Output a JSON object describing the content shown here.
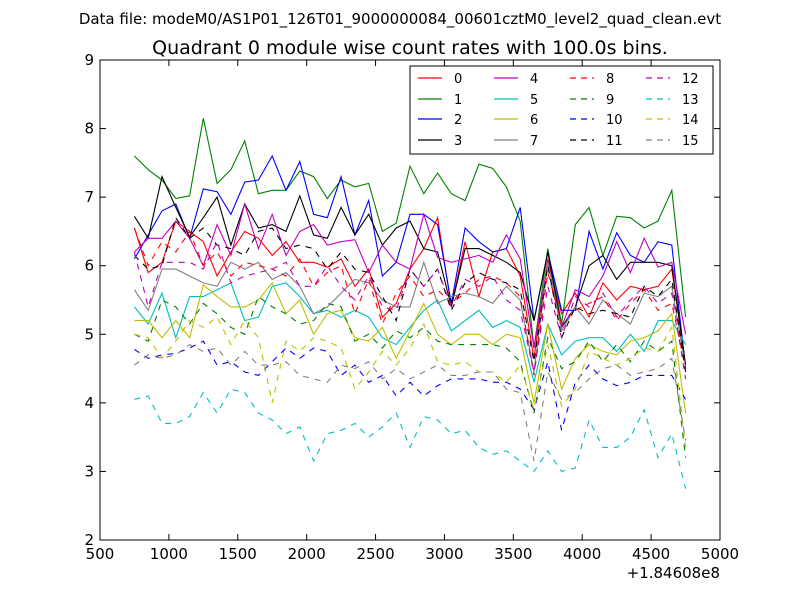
{
  "figure": {
    "suptitle": "Data file: modeM0/AS1P01_126T01_9000000084_00601cztM0_level2_quad_clean.evt",
    "title": "Quadrant 0 module wise count rates with 100.0s bins.",
    "x_offset_label": "+1.84608e8"
  },
  "chart_data": {
    "type": "line",
    "title": "Quadrant 0 module wise count rates with 100.0s bins.",
    "xlabel": "",
    "ylabel": "",
    "x_offset": "+1.84608e8",
    "xlim": [
      500,
      5000
    ],
    "ylim": [
      2,
      9
    ],
    "xticks": [
      500,
      1000,
      1500,
      2000,
      2500,
      3000,
      3500,
      4000,
      4500,
      5000
    ],
    "yticks": [
      2,
      3,
      4,
      5,
      6,
      7,
      8,
      9
    ],
    "grid": false,
    "legend_placement": "top-right",
    "x": [
      750,
      850,
      950,
      1050,
      1150,
      1250,
      1350,
      1450,
      1550,
      1650,
      1750,
      1850,
      1950,
      2050,
      2150,
      2250,
      2350,
      2450,
      2550,
      2650,
      2750,
      2850,
      2950,
      3050,
      3150,
      3250,
      3350,
      3450,
      3550,
      3650,
      3750,
      3850,
      3950,
      4050,
      4150,
      4250,
      4350,
      4450,
      4550,
      4650,
      4750
    ],
    "series": [
      {
        "name": "0",
        "color": "#ff0000",
        "dash": "solid",
        "values": [
          6.55,
          5.9,
          6.05,
          6.65,
          6.5,
          6.35,
          5.85,
          6.2,
          6.5,
          6.4,
          6.15,
          6.35,
          6.05,
          6.05,
          5.98,
          6.1,
          5.7,
          5.95,
          5.25,
          5.45,
          5.95,
          6.25,
          6.7,
          5.4,
          6.35,
          5.55,
          6.2,
          6.25,
          5.85,
          4.65,
          6.1,
          5.3,
          5.6,
          5.25,
          5.75,
          5.5,
          5.7,
          5.65,
          5.7,
          5.95,
          4.55
        ]
      },
      {
        "name": "1",
        "color": "#008000",
        "dash": "solid",
        "values": [
          7.6,
          7.4,
          7.25,
          6.98,
          7.02,
          8.15,
          7.2,
          7.4,
          7.82,
          7.05,
          7.1,
          7.1,
          7.38,
          7.3,
          6.98,
          7.25,
          7.15,
          7.2,
          6.5,
          6.62,
          7.45,
          7.05,
          7.35,
          7.05,
          6.95,
          7.48,
          7.42,
          7.15,
          6.65,
          4.8,
          6.25,
          5.15,
          6.6,
          6.85,
          6.15,
          6.72,
          6.7,
          6.55,
          6.65,
          7.1,
          5.25
        ]
      },
      {
        "name": "2",
        "color": "#0000ff",
        "dash": "solid",
        "values": [
          6.1,
          6.45,
          6.8,
          6.9,
          6.4,
          7.12,
          7.08,
          6.75,
          7.22,
          7.25,
          7.6,
          7.1,
          7.52,
          6.75,
          6.7,
          7.3,
          6.45,
          6.95,
          5.85,
          6.05,
          6.75,
          6.75,
          6.6,
          5.45,
          6.55,
          6.35,
          6.2,
          6.25,
          6.85,
          5.2,
          6.2,
          5.35,
          5.35,
          6.5,
          5.95,
          6.48,
          6.15,
          6.05,
          6.35,
          6.3,
          4.5
        ]
      },
      {
        "name": "3",
        "color": "#000000",
        "dash": "solid",
        "values": [
          6.72,
          6.4,
          7.3,
          6.85,
          6.42,
          6.7,
          7.0,
          6.3,
          6.9,
          6.55,
          6.6,
          6.5,
          7.02,
          6.45,
          6.4,
          6.85,
          6.45,
          6.75,
          6.3,
          6.55,
          6.65,
          6.25,
          6.2,
          5.4,
          6.25,
          6.25,
          6.15,
          6.05,
          5.9,
          5.2,
          6.2,
          5.1,
          5.4,
          6.0,
          6.15,
          5.8,
          6.05,
          6.05,
          6.05,
          6.0,
          4.55
        ]
      },
      {
        "name": "4",
        "color": "#bf00bf",
        "dash": "solid",
        "values": [
          6.2,
          6.4,
          6.4,
          6.65,
          6.4,
          6.0,
          6.6,
          6.15,
          6.9,
          6.25,
          6.75,
          6.15,
          6.5,
          6.6,
          6.3,
          6.35,
          6.38,
          5.9,
          6.3,
          6.05,
          5.95,
          6.75,
          6.12,
          6.05,
          6.1,
          6.15,
          6.05,
          6.45,
          6.1,
          4.8,
          6.05,
          5.1,
          5.65,
          5.55,
          5.85,
          6.35,
          5.9,
          6.4,
          5.98,
          6.05,
          5.0
        ]
      },
      {
        "name": "5",
        "color": "#00bfbf",
        "dash": "solid",
        "values": [
          5.4,
          5.15,
          5.6,
          4.95,
          5.55,
          5.55,
          5.65,
          5.75,
          5.2,
          5.25,
          5.7,
          5.75,
          5.55,
          5.3,
          5.35,
          5.25,
          5.35,
          5.25,
          4.95,
          4.85,
          5.1,
          5.35,
          5.5,
          5.05,
          5.2,
          5.35,
          5.1,
          5.2,
          5.1,
          4.3,
          5.15,
          4.7,
          4.9,
          4.95,
          4.95,
          4.75,
          5.0,
          4.75,
          5.2,
          5.2,
          4.85
        ]
      },
      {
        "name": "6",
        "color": "#bfbf00",
        "dash": "solid",
        "values": [
          5.2,
          5.2,
          4.95,
          5.2,
          4.95,
          5.72,
          5.55,
          5.4,
          5.4,
          5.5,
          5.75,
          5.3,
          5.5,
          5.0,
          5.3,
          5.35,
          4.95,
          4.9,
          5.1,
          4.65,
          5.05,
          5.45,
          5.0,
          4.85,
          5.0,
          5.0,
          4.85,
          5.0,
          4.95,
          4.0,
          5.15,
          4.2,
          4.65,
          4.85,
          4.75,
          4.7,
          4.9,
          4.95,
          5.05,
          5.3,
          3.85
        ]
      },
      {
        "name": "7",
        "color": "#808080",
        "dash": "solid",
        "values": [
          5.65,
          5.35,
          5.95,
          5.95,
          5.85,
          5.75,
          5.7,
          6.05,
          5.95,
          6.05,
          5.8,
          5.9,
          5.7,
          5.3,
          5.4,
          5.6,
          5.8,
          5.75,
          5.5,
          5.4,
          5.4,
          6.05,
          5.45,
          5.55,
          5.6,
          5.55,
          5.45,
          5.7,
          5.5,
          4.45,
          6.05,
          5.05,
          5.4,
          5.15,
          5.5,
          5.3,
          5.15,
          5.6,
          5.55,
          5.7,
          4.5
        ]
      },
      {
        "name": "8",
        "color": "#ff0000",
        "dash": "dashed",
        "values": [
          6.55,
          6.0,
          6.35,
          6.2,
          6.5,
          6.0,
          6.2,
          5.85,
          6.05,
          6.0,
          5.95,
          5.85,
          6.1,
          5.7,
          5.9,
          6.0,
          5.3,
          5.8,
          5.15,
          5.6,
          5.85,
          5.55,
          5.65,
          5.45,
          5.6,
          5.8,
          5.85,
          5.75,
          5.55,
          4.4,
          5.9,
          5.15,
          5.35,
          5.45,
          5.55,
          5.2,
          5.45,
          5.65,
          5.35,
          5.45,
          4.5
        ]
      },
      {
        "name": "9",
        "color": "#008000",
        "dash": "dashed",
        "values": [
          5.0,
          4.9,
          5.5,
          5.4,
          5.15,
          5.45,
          5.3,
          5.1,
          5.0,
          5.55,
          5.4,
          5.3,
          5.15,
          5.2,
          5.45,
          5.4,
          4.9,
          5.0,
          4.8,
          5.05,
          4.95,
          5.1,
          4.9,
          4.85,
          4.85,
          4.85,
          4.85,
          4.8,
          4.6,
          3.85,
          4.95,
          4.5,
          4.6,
          4.9,
          4.6,
          4.85,
          4.6,
          4.9,
          4.75,
          4.9,
          3.2
        ]
      },
      {
        "name": "10",
        "color": "#0000ff",
        "dash": "dashed",
        "values": [
          4.78,
          4.65,
          4.7,
          4.72,
          4.8,
          4.9,
          4.55,
          4.6,
          4.45,
          4.4,
          4.6,
          4.8,
          4.65,
          4.8,
          4.75,
          4.4,
          4.55,
          4.3,
          4.4,
          4.1,
          4.3,
          4.1,
          4.25,
          4.35,
          4.35,
          4.35,
          4.3,
          4.3,
          4.2,
          3.9,
          4.6,
          3.6,
          4.3,
          4.55,
          4.35,
          4.25,
          4.3,
          4.4,
          4.4,
          4.4,
          4.05
        ]
      },
      {
        "name": "11",
        "color": "#000000",
        "dash": "dashed",
        "values": [
          6.15,
          5.95,
          6.0,
          6.7,
          6.4,
          6.55,
          6.3,
          6.25,
          6.15,
          6.5,
          6.55,
          6.25,
          6.3,
          6.25,
          5.95,
          6.2,
          5.95,
          5.9,
          5.55,
          5.2,
          5.95,
          5.7,
          5.95,
          5.35,
          5.75,
          5.9,
          5.8,
          5.75,
          5.65,
          4.6,
          6.0,
          4.95,
          5.4,
          5.3,
          5.35,
          5.3,
          5.25,
          5.7,
          5.55,
          5.8,
          4.45
        ]
      },
      {
        "name": "12",
        "color": "#bf00bf",
        "dash": "dashed",
        "values": [
          6.2,
          5.4,
          6.05,
          6.05,
          6.05,
          5.95,
          6.35,
          5.75,
          5.85,
          5.9,
          5.95,
          6.05,
          5.7,
          5.7,
          6.0,
          5.7,
          5.5,
          5.85,
          5.4,
          5.35,
          5.95,
          5.7,
          5.95,
          5.4,
          5.8,
          5.7,
          5.85,
          5.5,
          5.35,
          4.45,
          5.7,
          4.95,
          5.55,
          5.4,
          5.6,
          5.25,
          5.5,
          5.7,
          5.45,
          5.6,
          4.35
        ]
      },
      {
        "name": "13",
        "color": "#00bfbf",
        "dash": "dashed",
        "values": [
          4.05,
          4.1,
          3.7,
          3.7,
          3.8,
          4.15,
          3.85,
          4.2,
          4.15,
          3.85,
          3.75,
          3.55,
          3.65,
          3.15,
          3.55,
          3.6,
          3.7,
          3.5,
          3.65,
          3.85,
          3.35,
          3.8,
          3.75,
          3.55,
          3.6,
          3.35,
          3.25,
          3.3,
          3.15,
          3.0,
          3.3,
          3.0,
          3.05,
          3.75,
          3.35,
          3.35,
          3.5,
          3.9,
          3.2,
          3.55,
          2.75
        ]
      },
      {
        "name": "14",
        "color": "#bfbf00",
        "dash": "dashed",
        "values": [
          5.0,
          4.95,
          4.65,
          4.9,
          5.2,
          5.1,
          5.25,
          4.85,
          5.2,
          4.95,
          4.0,
          4.9,
          4.75,
          4.95,
          4.9,
          4.8,
          4.2,
          4.45,
          4.75,
          4.55,
          4.8,
          5.15,
          4.6,
          4.55,
          4.6,
          4.45,
          4.45,
          4.3,
          4.55,
          3.9,
          4.85,
          3.95,
          4.2,
          4.75,
          4.65,
          4.55,
          4.65,
          4.8,
          4.75,
          5.1,
          3.35
        ]
      },
      {
        "name": "15",
        "color": "#808080",
        "dash": "dashed",
        "values": [
          4.55,
          4.7,
          4.65,
          4.7,
          4.85,
          4.75,
          4.8,
          4.55,
          4.75,
          4.55,
          4.55,
          4.6,
          4.4,
          4.35,
          4.3,
          4.55,
          4.5,
          4.6,
          4.35,
          4.5,
          4.35,
          4.45,
          4.55,
          4.4,
          4.4,
          4.45,
          4.45,
          4.2,
          4.15,
          3.15,
          4.45,
          4.05,
          4.15,
          4.35,
          4.5,
          4.55,
          4.4,
          4.45,
          4.5,
          4.65,
          3.45
        ]
      }
    ]
  }
}
